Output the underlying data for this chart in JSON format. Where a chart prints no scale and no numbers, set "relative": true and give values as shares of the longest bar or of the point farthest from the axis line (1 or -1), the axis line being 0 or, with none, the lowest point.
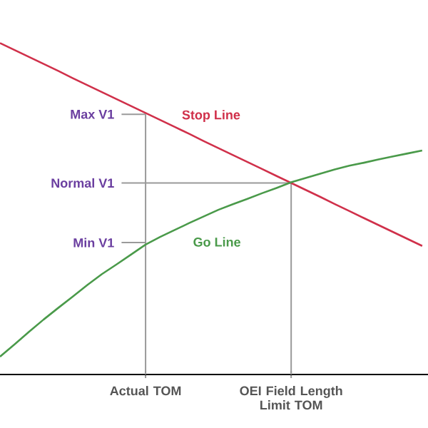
{
  "chart_data": {
    "type": "line",
    "relative": true,
    "categories": [
      null,
      null,
      null,
      null,
      null,
      null,
      null,
      null,
      null,
      null,
      "Actual TOM",
      null,
      null,
      null,
      null,
      null,
      null,
      null,
      null,
      null,
      "OEI Field Length Limit TOM",
      null,
      null,
      null,
      null,
      null,
      null,
      null,
      null,
      null
    ],
    "series": [
      {
        "color": "#d0304a",
        "values": [
          1,
          0.979,
          0.958,
          0.937,
          0.916,
          0.894,
          0.873,
          0.852,
          0.831,
          0.81,
          0.789,
          0.768,
          0.747,
          0.726,
          0.704,
          0.683,
          0.662,
          0.641,
          0.62,
          0.599,
          0.578,
          0.557,
          0.536,
          0.514,
          0.493,
          0.472,
          0.451,
          0.43,
          0.409,
          0.388
        ]
      },
      {
        "color": "#4a9a4a",
        "values": [
          0.054,
          0.091,
          0.129,
          0.166,
          0.201,
          0.235,
          0.27,
          0.303,
          0.332,
          0.362,
          0.392,
          0.415,
          0.436,
          0.457,
          0.477,
          0.497,
          0.514,
          0.53,
          0.547,
          0.563,
          0.58,
          0.593,
          0.606,
          0.619,
          0.63,
          0.639,
          0.649,
          0.658,
          0.667,
          0.676
        ]
      }
    ],
    "ref_lines": [
      {
        "axis": "y",
        "value": 0.785,
        "label": "Max V1",
        "color": "#9a9a9a"
      },
      {
        "axis": "y",
        "value": 0.578,
        "label": "Normal V1",
        "color": "#9a9a9a"
      },
      {
        "axis": "y",
        "value": 0.398,
        "label": "Min V1",
        "color": "#9a9a9a"
      }
    ],
    "annotations": [
      "Stop Line",
      "Go Line"
    ],
    "grid": "x",
    "marker": "none",
    "line_style": "solid"
  }
}
